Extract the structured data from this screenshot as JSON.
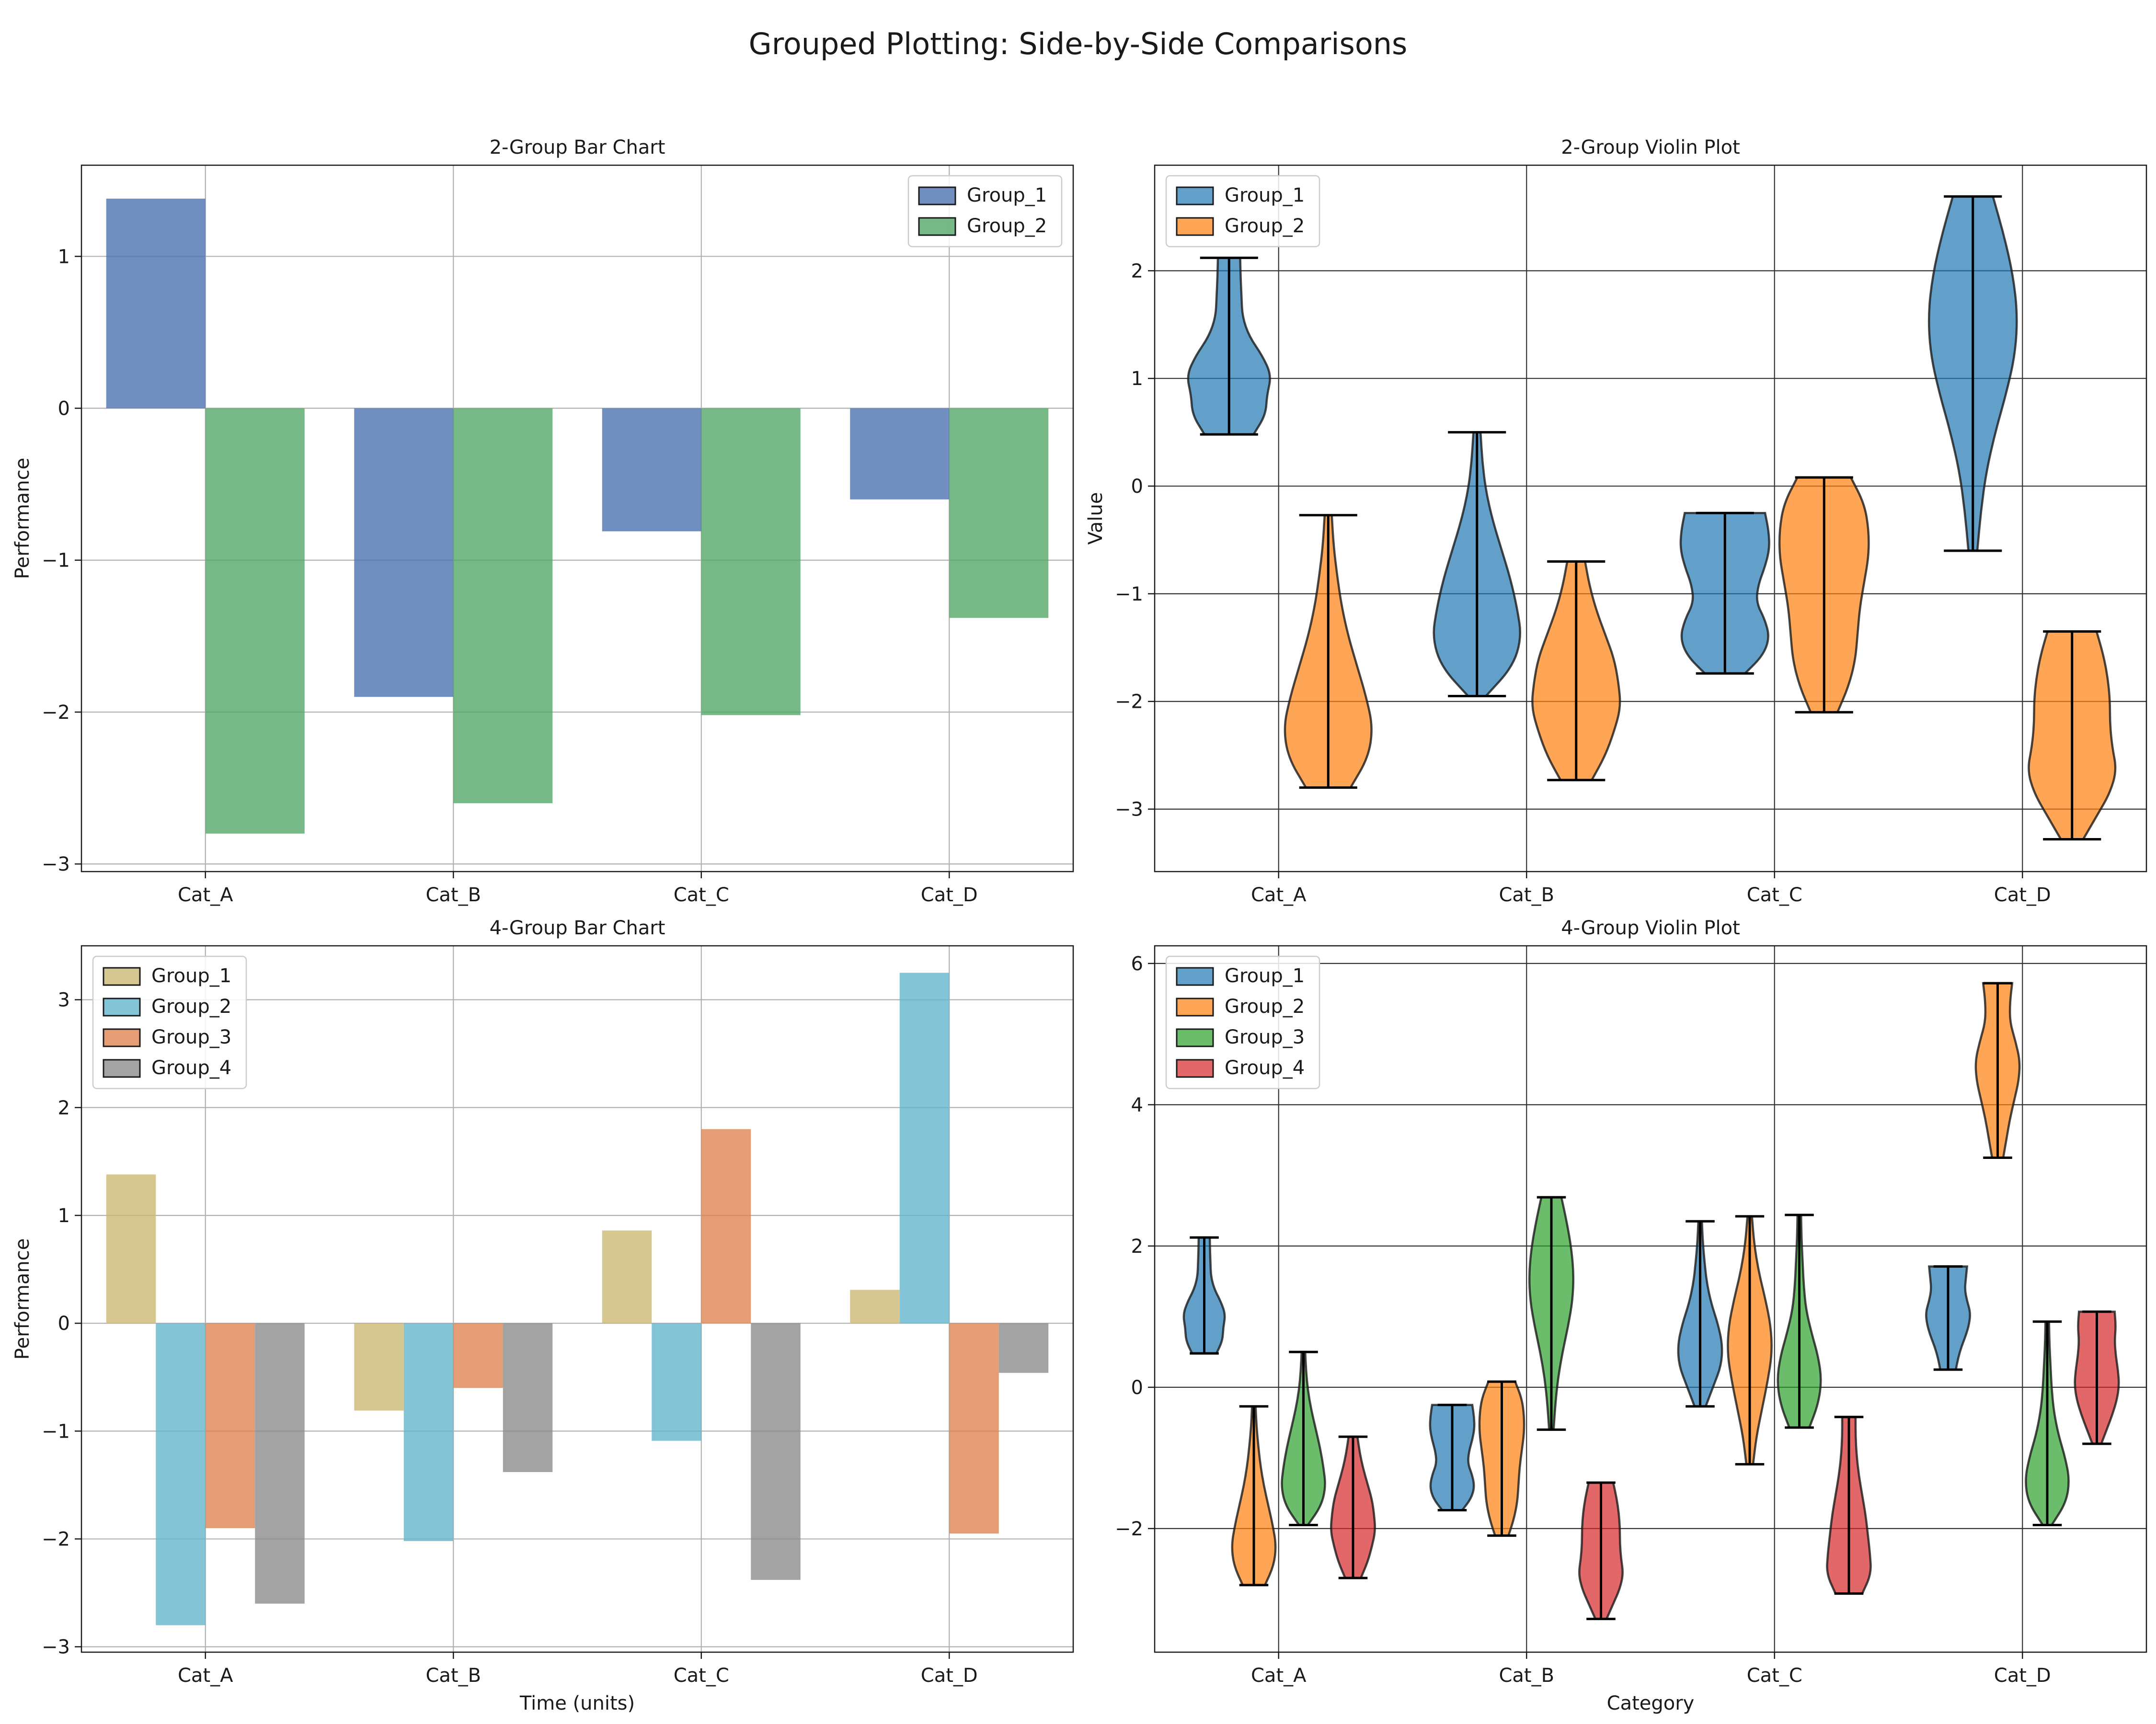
{
  "title": "Grouped Plotting: Side-by-Side Comparisons",
  "colors": {
    "bar2": [
      "#4c72b0",
      "#55a868"
    ],
    "bar4": [
      "#ccb974",
      "#64b5cd",
      "#dd8452",
      "#8c8c8c"
    ],
    "violin": [
      "#1f77b4",
      "#ff7f0e",
      "#2ca02c",
      "#d62728"
    ]
  },
  "chart_data": [
    {
      "id": "bar2",
      "type": "bar",
      "title": "2-Group Bar Chart",
      "xlabel": "",
      "ylabel": "Performance",
      "categories": [
        "Cat_A",
        "Cat_B",
        "Cat_C",
        "Cat_D"
      ],
      "ylim": [
        -3.05,
        1.6
      ],
      "yticks": [
        -3,
        -2,
        -1,
        0,
        1
      ],
      "legend_position": "upper right",
      "grid": true,
      "series": [
        {
          "name": "Group_1",
          "values": [
            1.38,
            -1.9,
            -0.81,
            -0.6
          ]
        },
        {
          "name": "Group_2",
          "values": [
            -2.8,
            -2.6,
            -2.02,
            -1.38
          ]
        }
      ]
    },
    {
      "id": "violin2",
      "type": "violin",
      "title": "2-Group Violin Plot",
      "xlabel": "",
      "ylabel": "Value",
      "categories": [
        "Cat_A",
        "Cat_B",
        "Cat_C",
        "Cat_D"
      ],
      "ylim": [
        -3.58,
        2.98
      ],
      "yticks": [
        -3,
        -2,
        -1,
        0,
        1,
        2
      ],
      "legend_position": "upper left",
      "grid": true,
      "series": [
        {
          "name": "Group_1",
          "violins": [
            {
              "min": 0.48,
              "max": 2.12,
              "profile": [
                0.55,
                0.82,
                0.85,
                0.95,
                0.75,
                0.45,
                0.3,
                0.28,
                0.26,
                0.25
              ]
            },
            {
              "min": -1.95,
              "max": 0.5,
              "profile": [
                0.2,
                0.8,
                1.0,
                0.9,
                0.75,
                0.55,
                0.35,
                0.2,
                0.12,
                0.08
              ]
            },
            {
              "min": -1.74,
              "max": -0.25,
              "profile": [
                0.45,
                0.85,
                1.0,
                0.9,
                0.7,
                0.75,
                0.9,
                1.0,
                0.98,
                0.9
              ]
            },
            {
              "min": -0.6,
              "max": 2.69,
              "profile": [
                0.1,
                0.18,
                0.3,
                0.5,
                0.75,
                0.95,
                1.0,
                0.9,
                0.7,
                0.45
              ]
            }
          ]
        },
        {
          "name": "Group_2",
          "violins": [
            {
              "min": -2.8,
              "max": -0.27,
              "profile": [
                0.5,
                0.9,
                1.0,
                0.85,
                0.65,
                0.45,
                0.3,
                0.2,
                0.12,
                0.08
              ]
            },
            {
              "min": -2.73,
              "max": -0.7,
              "profile": [
                0.35,
                0.65,
                0.85,
                1.0,
                0.95,
                0.85,
                0.65,
                0.45,
                0.3,
                0.2
              ]
            },
            {
              "min": -2.1,
              "max": 0.08,
              "profile": [
                0.3,
                0.55,
                0.7,
                0.75,
                0.8,
                0.9,
                1.0,
                1.0,
                0.9,
                0.6
              ]
            },
            {
              "min": -3.28,
              "max": -1.35,
              "profile": [
                0.25,
                0.55,
                0.85,
                1.0,
                0.9,
                0.85,
                0.85,
                0.8,
                0.7,
                0.55
              ]
            }
          ]
        }
      ]
    },
    {
      "id": "bar4",
      "type": "bar",
      "title": "4-Group Bar Chart",
      "xlabel": "Time (units)",
      "ylabel": "Performance",
      "categories": [
        "Cat_A",
        "Cat_B",
        "Cat_C",
        "Cat_D"
      ],
      "ylim": [
        -3.05,
        3.5
      ],
      "yticks": [
        -3,
        -2,
        -1,
        0,
        1,
        2,
        3
      ],
      "legend_position": "upper left",
      "grid": true,
      "series": [
        {
          "name": "Group_1",
          "values": [
            1.38,
            -0.81,
            0.86,
            0.31
          ]
        },
        {
          "name": "Group_2",
          "values": [
            -2.8,
            -2.02,
            -1.09,
            3.25
          ]
        },
        {
          "name": "Group_3",
          "values": [
            -1.9,
            -0.6,
            1.8,
            -1.95
          ]
        },
        {
          "name": "Group_4",
          "values": [
            -2.6,
            -1.38,
            -2.38,
            -0.46
          ]
        }
      ]
    },
    {
      "id": "violin4",
      "type": "violin",
      "title": "4-Group Violin Plot",
      "xlabel": "Category",
      "ylabel": "",
      "categories": [
        "Cat_A",
        "Cat_B",
        "Cat_C",
        "Cat_D"
      ],
      "ylim": [
        -3.75,
        6.25
      ],
      "yticks": [
        -2,
        0,
        2,
        4,
        6
      ],
      "legend_position": "upper left",
      "grid": true,
      "series": [
        {
          "name": "Group_1",
          "violins": [
            {
              "min": 0.48,
              "max": 2.12,
              "profile": [
                0.55,
                0.82,
                0.85,
                0.95,
                0.75,
                0.45,
                0.3,
                0.28,
                0.26,
                0.25
              ]
            },
            {
              "min": -1.74,
              "max": -0.25,
              "profile": [
                0.45,
                0.85,
                1.0,
                0.9,
                0.7,
                0.75,
                0.9,
                1.0,
                0.98,
                0.9
              ]
            },
            {
              "min": -0.27,
              "max": 2.35,
              "profile": [
                0.25,
                0.6,
                0.95,
                1.0,
                0.8,
                0.5,
                0.3,
                0.2,
                0.12,
                0.08
              ]
            },
            {
              "min": 0.25,
              "max": 1.71,
              "profile": [
                0.35,
                0.45,
                0.6,
                0.8,
                0.95,
                1.0,
                0.85,
                0.75,
                0.8,
                0.85
              ]
            }
          ]
        },
        {
          "name": "Group_2",
          "violins": [
            {
              "min": -2.8,
              "max": -0.27,
              "profile": [
                0.5,
                0.9,
                1.0,
                0.85,
                0.65,
                0.45,
                0.3,
                0.2,
                0.12,
                0.08
              ]
            },
            {
              "min": -2.1,
              "max": 0.08,
              "profile": [
                0.3,
                0.55,
                0.7,
                0.75,
                0.8,
                0.9,
                1.0,
                1.0,
                0.9,
                0.6
              ]
            },
            {
              "min": -1.09,
              "max": 2.42,
              "profile": [
                0.15,
                0.3,
                0.55,
                0.8,
                1.0,
                0.95,
                0.7,
                0.4,
                0.2,
                0.1
              ]
            },
            {
              "min": 3.25,
              "max": 5.72,
              "profile": [
                0.25,
                0.4,
                0.55,
                0.75,
                0.95,
                1.0,
                0.8,
                0.55,
                0.55,
                0.65
              ]
            }
          ]
        },
        {
          "name": "Group_3",
          "violins": [
            {
              "min": -1.95,
              "max": 0.5,
              "profile": [
                0.2,
                0.8,
                1.0,
                0.9,
                0.75,
                0.55,
                0.35,
                0.2,
                0.12,
                0.08
              ]
            },
            {
              "min": -0.6,
              "max": 2.69,
              "profile": [
                0.1,
                0.18,
                0.3,
                0.5,
                0.75,
                0.95,
                1.0,
                0.9,
                0.7,
                0.45
              ]
            },
            {
              "min": -0.57,
              "max": 2.44,
              "profile": [
                0.45,
                0.85,
                1.0,
                0.85,
                0.55,
                0.3,
                0.2,
                0.15,
                0.1,
                0.08
              ]
            },
            {
              "min": -1.95,
              "max": 0.93,
              "profile": [
                0.2,
                0.85,
                1.0,
                0.8,
                0.5,
                0.3,
                0.2,
                0.15,
                0.1,
                0.08
              ]
            }
          ]
        },
        {
          "name": "Group_4",
          "violins": [
            {
              "min": -2.7,
              "max": -0.7,
              "profile": [
                0.35,
                0.65,
                0.85,
                1.0,
                0.95,
                0.85,
                0.65,
                0.45,
                0.3,
                0.2
              ]
            },
            {
              "min": -3.28,
              "max": -1.35,
              "profile": [
                0.25,
                0.55,
                0.85,
                1.0,
                0.9,
                0.85,
                0.85,
                0.8,
                0.7,
                0.55
              ]
            },
            {
              "min": -2.92,
              "max": -0.42,
              "profile": [
                0.6,
                1.0,
                0.95,
                0.85,
                0.75,
                0.6,
                0.45,
                0.35,
                0.3,
                0.3
              ]
            },
            {
              "min": -0.8,
              "max": 1.07,
              "profile": [
                0.2,
                0.45,
                0.7,
                0.9,
                1.0,
                0.95,
                0.85,
                0.8,
                0.85,
                0.8
              ]
            }
          ]
        }
      ]
    }
  ]
}
